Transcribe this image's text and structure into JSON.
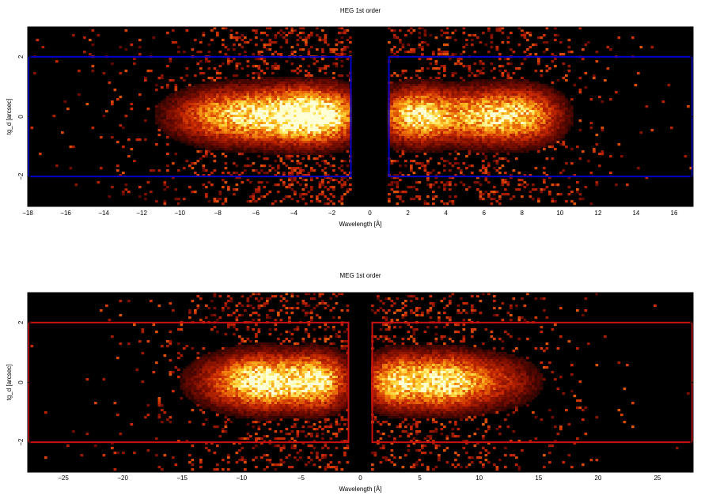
{
  "chart_data": [
    {
      "type": "heatmap",
      "title": "HEG 1st order",
      "xlabel": "Wavelength [Å]",
      "ylabel": "tg_d [arcsec]",
      "xlim": [
        -18,
        17
      ],
      "ylim": [
        -3,
        3
      ],
      "xticks": [
        -18,
        -16,
        -14,
        -12,
        -10,
        -8,
        -6,
        -4,
        -2,
        0,
        2,
        4,
        6,
        8,
        10,
        12,
        14,
        16
      ],
      "xtick_labels": [
        "−18",
        "−16",
        "−14",
        "−12",
        "−10",
        "−8",
        "−6",
        "−4",
        "−2",
        "0",
        "2",
        "4",
        "6",
        "8",
        "10",
        "12",
        "14",
        "16"
      ],
      "yticks": [
        -2,
        0,
        2
      ],
      "ytick_labels": [
        "−2",
        "0",
        "2"
      ],
      "colormap": "black-red-yellow-white",
      "background": "#000000",
      "density_peaks": [
        {
          "x": -2.5,
          "y": 0,
          "sigma_x": 1.3,
          "amplitude": 1.0
        },
        {
          "x": -4.5,
          "y": 0,
          "sigma_x": 1.6,
          "amplitude": 0.9
        },
        {
          "x": -7.5,
          "y": 0,
          "sigma_x": 1.8,
          "amplitude": 0.75
        },
        {
          "x": 2.5,
          "y": 0,
          "sigma_x": 1.2,
          "amplitude": 1.0
        },
        {
          "x": 6.0,
          "y": 0,
          "sigma_x": 1.6,
          "amplitude": 0.85
        },
        {
          "x": 8.3,
          "y": 0,
          "sigma_x": 1.2,
          "amplitude": 0.6
        }
      ],
      "regions": [
        {
          "x": [
            -18,
            -1
          ],
          "y": [
            -2,
            2
          ],
          "color": "#0000cc"
        },
        {
          "x": [
            1,
            17
          ],
          "y": [
            -2,
            2
          ],
          "color": "#0000cc"
        }
      ]
    },
    {
      "type": "heatmap",
      "title": "MEG 1st order",
      "xlabel": "Wavelength [Å]",
      "ylabel": "tg_d [arcsec]",
      "xlim": [
        -28,
        28
      ],
      "ylim": [
        -3,
        3
      ],
      "xticks": [
        -25,
        -20,
        -15,
        -10,
        -5,
        0,
        5,
        10,
        15,
        20,
        25
      ],
      "xtick_labels": [
        "−25",
        "−20",
        "−15",
        "−10",
        "−5",
        "0",
        "5",
        "10",
        "15",
        "20",
        "25"
      ],
      "yticks": [
        -2,
        0,
        2
      ],
      "ytick_labels": [
        "−2",
        "0",
        "2"
      ],
      "colormap": "black-red-yellow-white",
      "background": "#000000",
      "density_peaks": [
        {
          "x": -3.5,
          "y": 0,
          "sigma_x": 1.5,
          "amplitude": 1.0
        },
        {
          "x": -7.5,
          "y": 0,
          "sigma_x": 2.2,
          "amplitude": 1.0
        },
        {
          "x": -10.5,
          "y": 0,
          "sigma_x": 2.5,
          "amplitude": 0.45
        },
        {
          "x": 3.0,
          "y": 0,
          "sigma_x": 1.6,
          "amplitude": 0.9
        },
        {
          "x": 7.0,
          "y": 0,
          "sigma_x": 2.0,
          "amplitude": 1.0
        },
        {
          "x": 11.0,
          "y": 0,
          "sigma_x": 2.5,
          "amplitude": 0.4
        }
      ],
      "regions": [
        {
          "x": [
            -28,
            -1
          ],
          "y": [
            -2,
            2
          ],
          "color": "#cc1111"
        },
        {
          "x": [
            1,
            28
          ],
          "y": [
            -2,
            2
          ],
          "color": "#cc1111"
        }
      ]
    }
  ]
}
